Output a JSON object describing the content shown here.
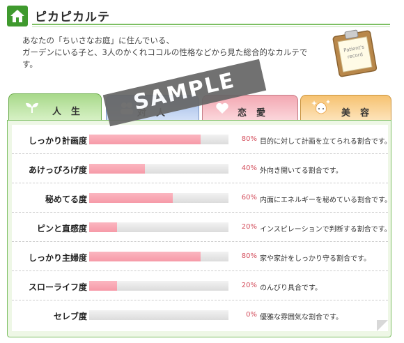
{
  "header": {
    "title": "ピカピカルテ",
    "icon": "home-icon"
  },
  "intro": {
    "line1": "あなたの「ちいさなお庭」に住んでいる、",
    "line2": "ガーデンにいる子と、3人のかくれココルの性格などから見た総合的なカルテで",
    "line3": "す。"
  },
  "clipboard": {
    "icon": "clipboard-icon",
    "text1": "Patient's",
    "text2": "record"
  },
  "tabs": [
    {
      "label": "人生",
      "icon": "sprout-icon",
      "color": "#a8d98a",
      "selected": true
    },
    {
      "label": "対人",
      "icon": "people-icon",
      "color": "#9fb9e6",
      "selected": false
    },
    {
      "label": "恋愛",
      "icon": "heart-icon",
      "color": "#f3a8b2",
      "selected": false
    },
    {
      "label": "美容",
      "icon": "sparkle-face-icon",
      "color": "#f6c271",
      "selected": false
    }
  ],
  "watermark": "SAMPLE",
  "rows": [
    {
      "label": "しっかり計画度",
      "value": 80,
      "pct": "80%",
      "desc": "目的に対して計画を立てられる割合です。"
    },
    {
      "label": "あけっぴろげ度",
      "value": 40,
      "pct": "40%",
      "desc": "外向き開いてる割合です。"
    },
    {
      "label": "秘めてる度",
      "value": 60,
      "pct": "60%",
      "desc": "内面にエネルギーを秘めている割合です。"
    },
    {
      "label": "ピンと直感度",
      "value": 20,
      "pct": "20%",
      "desc": "インスピレーションで判断する割合です。"
    },
    {
      "label": "しっかり主婦度",
      "value": 80,
      "pct": "80%",
      "desc": "家や家計をしっかり守る割合です。"
    },
    {
      "label": "スローライフ度",
      "value": 20,
      "pct": "20%",
      "desc": "のんびり具合です。"
    },
    {
      "label": "セレブ度",
      "value": 0,
      "pct": "0%",
      "desc": "優雅な雰囲気な割合です。"
    }
  ],
  "colors": {
    "accent": "#3f9a2e",
    "bar_fill": "#f69aa8",
    "pct_text": "#d4505e"
  }
}
